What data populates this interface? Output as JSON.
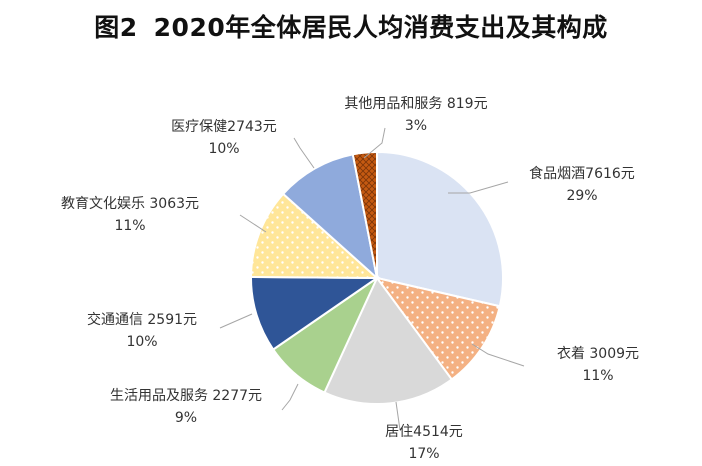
{
  "title": {
    "prefix": "图2",
    "text": "2020年全体居民人均消费支出及其构成"
  },
  "chart_data": {
    "type": "pie",
    "title": "图2  2020年全体居民人均消费支出及其构成",
    "unit": "元",
    "slices": [
      {
        "name": "食品烟酒",
        "value": 7616,
        "percent": 29,
        "label": "食品烟酒7616元",
        "pct_label": "29%",
        "color": "#dae3f3",
        "pattern": "none"
      },
      {
        "name": "衣着",
        "value": 3009,
        "percent": 11,
        "label": "衣着 3009元",
        "pct_label": "11%",
        "color": "#f4b183",
        "pattern": "dots"
      },
      {
        "name": "居住",
        "value": 4514,
        "percent": 17,
        "label": "居住4514元",
        "pct_label": "17%",
        "color": "#d9d9d9",
        "pattern": "none"
      },
      {
        "name": "生活用品及服务",
        "value": 2277,
        "percent": 9,
        "label": "生活用品及服务 2277元",
        "pct_label": "9%",
        "color": "#a9d18e",
        "pattern": "none"
      },
      {
        "name": "交通通信",
        "value": 2591,
        "percent": 10,
        "label": "交通通信 2591元",
        "pct_label": "10%",
        "color": "#2f5597",
        "pattern": "none"
      },
      {
        "name": "教育文化娱乐",
        "value": 3063,
        "percent": 11,
        "label": "教育文化娱乐 3063元",
        "pct_label": "11%",
        "color": "#ffe699",
        "pattern": "dots"
      },
      {
        "name": "医疗保健",
        "value": 2743,
        "percent": 10,
        "label": "医疗保健2743元",
        "pct_label": "10%",
        "color": "#8faadc",
        "pattern": "none"
      },
      {
        "name": "其他用品和服务",
        "value": 819,
        "percent": 3,
        "label": "其他用品和服务 819元",
        "pct_label": "3%",
        "color": "#c55a11",
        "pattern": "crosshatch"
      }
    ],
    "legend": "none",
    "data_labels": "outside-with-leader-lines"
  }
}
